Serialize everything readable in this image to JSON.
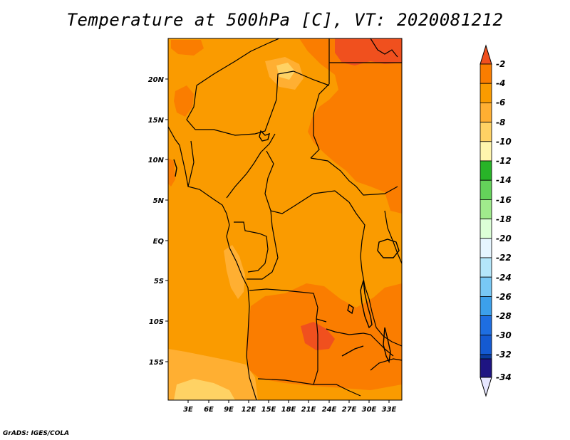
{
  "title": "Temperature at 500hPa [C], VT: 2020081212",
  "credit": "GrADS: IGES/COLA",
  "map": {
    "lon_labels": [
      "3E",
      "6E",
      "9E",
      "12E",
      "15E",
      "18E",
      "21E",
      "24E",
      "27E",
      "30E",
      "33E"
    ],
    "lat_labels": [
      "20N",
      "15N",
      "10N",
      "5N",
      "EQ",
      "5S",
      "10S",
      "15S"
    ],
    "region": "Central Africa",
    "lon_range": [
      0,
      35
    ],
    "lat_range": [
      -20,
      24.5
    ]
  },
  "colorbar": {
    "labels": [
      "-2",
      "-4",
      "-6",
      "-8",
      "-10",
      "-12",
      "-14",
      "-16",
      "-18",
      "-20",
      "-22",
      "-24",
      "-26",
      "-28",
      "-30",
      "-32",
      "-34"
    ],
    "colors": [
      "#f0501e",
      "#fa7d00",
      "#fa9b00",
      "#ffaf32",
      "#ffd264",
      "#fff5ad",
      "#28b428",
      "#64d25a",
      "#a0eb8c",
      "#dcffd7",
      "#e6f5ff",
      "#b4e6fa",
      "#78c8f5",
      "#3ca0eb",
      "#1e6ee1",
      "#145ad2",
      "#0a3ca0",
      "#1e1482",
      "#e6e6ff"
    ]
  },
  "colors": {
    "field_base": "#fa9b00",
    "warm": "#fa7d00",
    "warmest": "#f0501e",
    "cool": "#ffaf32",
    "coolest": "#ffd264"
  }
}
